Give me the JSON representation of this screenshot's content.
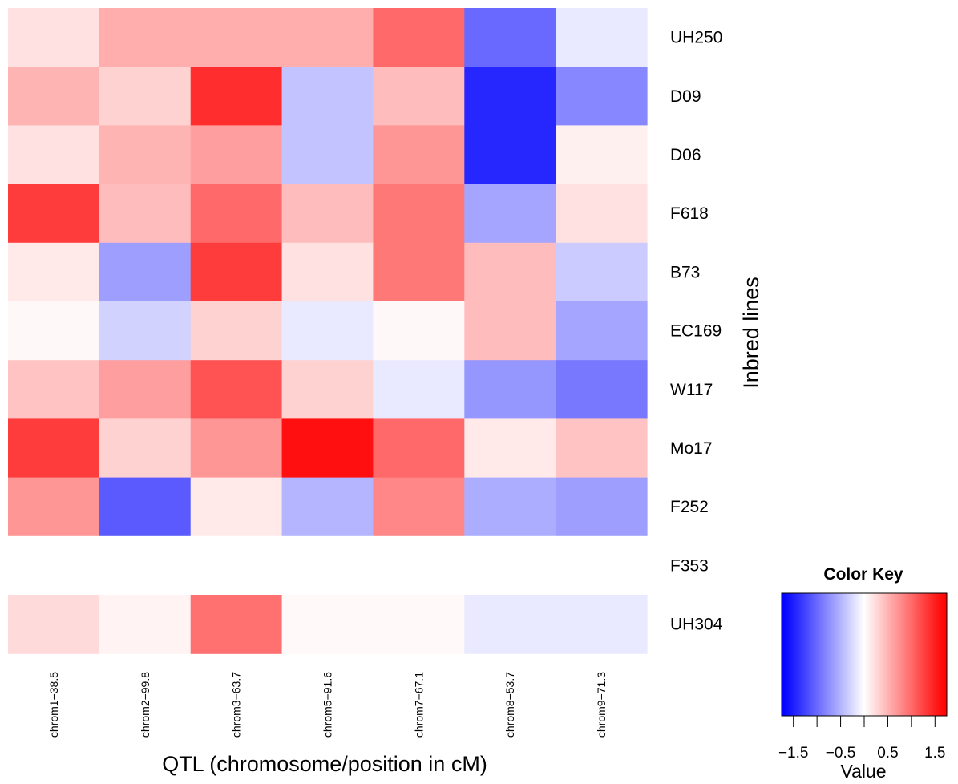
{
  "chart_data": {
    "type": "heatmap",
    "xlabel": "QTL (chromosome/position in cM)",
    "ylabel": "Inbred lines",
    "columns": [
      "chrom1−38.5",
      "chrom2−99.8",
      "chrom3−63.7",
      "chrom5−91.6",
      "chrom7−67.1",
      "chrom8−53.7",
      "chrom9−71.3"
    ],
    "rows": [
      "UH250",
      "D09",
      "D06",
      "F618",
      "B73",
      "EC169",
      "W117",
      "Mo17",
      "F252",
      "F353",
      "UH304"
    ],
    "values": [
      [
        0.2,
        0.55,
        0.55,
        0.55,
        1.0,
        -1.0,
        -0.15
      ],
      [
        0.5,
        0.3,
        1.4,
        -0.4,
        0.45,
        -1.45,
        -0.8
      ],
      [
        0.2,
        0.5,
        0.65,
        -0.4,
        0.7,
        -1.45,
        0.1
      ],
      [
        1.3,
        0.45,
        1.0,
        0.45,
        0.9,
        -0.6,
        0.2
      ],
      [
        0.15,
        -0.65,
        1.3,
        0.2,
        0.9,
        0.45,
        -0.35
      ],
      [
        0.05,
        -0.3,
        0.3,
        -0.15,
        0.05,
        0.45,
        -0.6
      ],
      [
        0.4,
        0.65,
        1.15,
        0.3,
        -0.15,
        -0.7,
        -0.9
      ],
      [
        1.3,
        0.3,
        0.7,
        1.6,
        1.0,
        0.15,
        0.4
      ],
      [
        0.7,
        -1.1,
        0.15,
        -0.5,
        0.8,
        -0.55,
        -0.65
      ],
      [
        null,
        null,
        null,
        null,
        null,
        null,
        null
      ],
      [
        0.25,
        0.08,
        0.95,
        0.04,
        0.04,
        -0.15,
        -0.15
      ]
    ],
    "color_scale": {
      "min": -1.7,
      "max": 1.7,
      "low": "#0000ff",
      "mid": "#ffffff",
      "high": "#ff0000"
    },
    "legend": {
      "title": "Color Key",
      "xlabel": "Value",
      "tick_labels": [
        "−1.5",
        "−0.5",
        "0.5",
        "1.5"
      ],
      "tick_values": [
        -1.5,
        -0.5,
        0.5,
        1.5
      ],
      "minor_ticks": [
        -1.5,
        -1.0,
        -0.5,
        0.0,
        0.5,
        1.0,
        1.5
      ],
      "range": [
        -1.75,
        1.75
      ],
      "placement": "bottom-right"
    }
  }
}
